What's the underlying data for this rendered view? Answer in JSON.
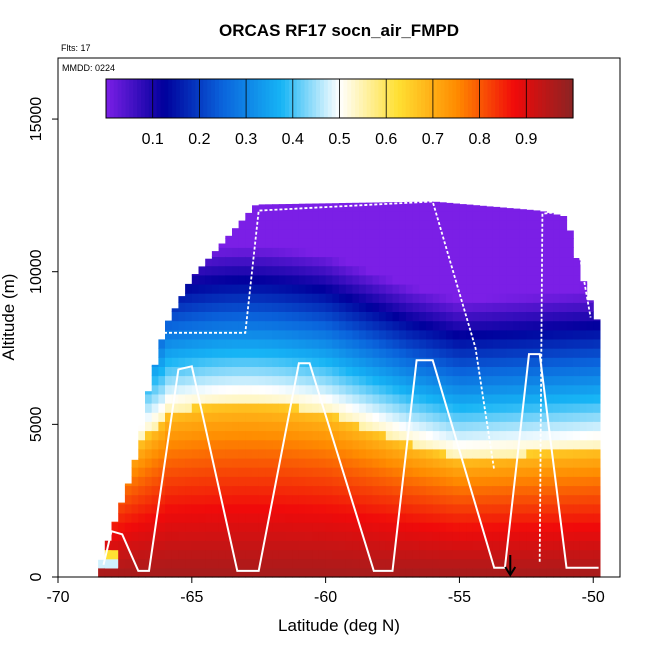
{
  "chart_data": {
    "type": "heatmap",
    "title": "ORCAS RF17 socn_air_FMPD",
    "annotations": {
      "flights": "Flts: 17",
      "date": "MMDD: 0224"
    },
    "xlabel": "Latitude (deg N)",
    "ylabel": "Altitude (m)",
    "xlim": [
      -70,
      -49
    ],
    "ylim": [
      0,
      17000
    ],
    "x_ticks": [
      {
        "value": -70,
        "label": "-70"
      },
      {
        "value": -65,
        "label": "-65"
      },
      {
        "value": -60,
        "label": "-60"
      },
      {
        "value": -55,
        "label": "-55"
      },
      {
        "value": -50,
        "label": "-50"
      }
    ],
    "y_ticks": [
      {
        "value": 0,
        "label": "0"
      },
      {
        "value": 5000,
        "label": "5000"
      },
      {
        "value": 10000,
        "label": "10000"
      },
      {
        "value": 15000,
        "label": "15000"
      }
    ],
    "colorbar": {
      "range": [
        0,
        1
      ],
      "ticks": [
        {
          "value": 0.1,
          "label": "0.1"
        },
        {
          "value": 0.2,
          "label": "0.2"
        },
        {
          "value": 0.3,
          "label": "0.3"
        },
        {
          "value": 0.4,
          "label": "0.4"
        },
        {
          "value": 0.5,
          "label": "0.5"
        },
        {
          "value": 0.6,
          "label": "0.6"
        },
        {
          "value": 0.7,
          "label": "0.7"
        },
        {
          "value": 0.8,
          "label": "0.8"
        },
        {
          "value": 0.9,
          "label": "0.9"
        }
      ],
      "stops": [
        "#7b1fe6",
        "#00009c",
        "#0a64dc",
        "#16b4f5",
        "#ffffff",
        "#ffe033",
        "#ff8c00",
        "#f00a0a",
        "#8b2323"
      ]
    },
    "field_summary": {
      "description": "Fraction of southern-ocean air vs latitude and altitude",
      "top_altitude_m": 12200,
      "top_lat_start": -62.5,
      "boundary_at_lower_left": [
        -68.5,
        0
      ],
      "boundary_profile": [
        {
          "lat": -68.6,
          "alt": 0
        },
        {
          "lat": -68.0,
          "alt": 1500
        },
        {
          "lat": -67.2,
          "alt": 3500
        },
        {
          "lat": -66.6,
          "alt": 6200
        },
        {
          "lat": -66.0,
          "alt": 8200
        },
        {
          "lat": -65.0,
          "alt": 9800
        },
        {
          "lat": -63.8,
          "alt": 11000
        },
        {
          "lat": -62.6,
          "alt": 12200
        },
        {
          "lat": -56.0,
          "alt": 12300
        },
        {
          "lat": -52.0,
          "alt": 12000
        },
        {
          "lat": -51.0,
          "alt": 11800
        },
        {
          "lat": -50.5,
          "alt": 10000
        },
        {
          "lat": -49.7,
          "alt": 8000
        },
        {
          "lat": -49.7,
          "alt": 0
        }
      ]
    },
    "flight_track": {
      "description": "aircraft altitude vs latitude (white line)",
      "points": [
        {
          "lat": -68.3,
          "alt": 400
        },
        {
          "lat": -68.0,
          "alt": 1500
        },
        {
          "lat": -67.6,
          "alt": 1400
        },
        {
          "lat": -67.0,
          "alt": 200
        },
        {
          "lat": -66.6,
          "alt": 200
        },
        {
          "lat": -65.5,
          "alt": 6800
        },
        {
          "lat": -65.0,
          "alt": 6900
        },
        {
          "lat": -63.3,
          "alt": 200
        },
        {
          "lat": -62.5,
          "alt": 200
        },
        {
          "lat": -61.0,
          "alt": 7000
        },
        {
          "lat": -60.6,
          "alt": 7000
        },
        {
          "lat": -58.2,
          "alt": 200
        },
        {
          "lat": -57.5,
          "alt": 200
        },
        {
          "lat": -56.6,
          "alt": 7100
        },
        {
          "lat": -56.0,
          "alt": 7100
        },
        {
          "lat": -53.7,
          "alt": 300
        },
        {
          "lat": -53.3,
          "alt": 300
        },
        {
          "lat": -52.4,
          "alt": 7300
        },
        {
          "lat": -52.0,
          "alt": 7300
        },
        {
          "lat": -51.0,
          "alt": 300
        },
        {
          "lat": -49.8,
          "alt": 300
        }
      ],
      "upper_legs": [
        [
          {
            "lat": -66.6,
            "alt": 8000
          },
          {
            "lat": -63.0,
            "alt": 8000
          },
          {
            "lat": -62.5,
            "alt": 12000
          },
          {
            "lat": -56.0,
            "alt": 12300
          },
          {
            "lat": -55.4,
            "alt": 10500
          },
          {
            "lat": -54.4,
            "alt": 7500
          },
          {
            "lat": -53.7,
            "alt": 3500
          }
        ],
        [
          {
            "lat": -52.0,
            "alt": 500
          },
          {
            "lat": -51.9,
            "alt": 11900
          },
          {
            "lat": -50.8,
            "alt": 12000
          },
          {
            "lat": -50.1,
            "alt": 8500
          }
        ]
      ]
    },
    "marker": {
      "lat": -53.1,
      "label": "arrow",
      "direction": "down"
    }
  }
}
